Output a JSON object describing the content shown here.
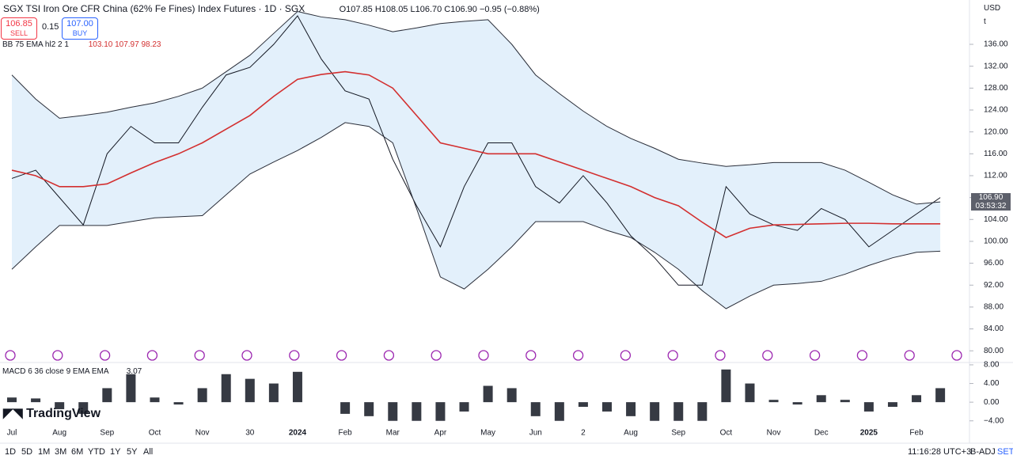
{
  "header": {
    "symbol": "SGX TSI Iron Ore CFR China (62% Fe Fines) Index Futures · 1D · SGX",
    "ohlc": "O107.85 H108.05 L106.70 C106.90 −0.95 (−0.88%)",
    "sell_price": "106.85",
    "sell": "SELL",
    "spread": "0.15",
    "buy_price": "107.00",
    "buy": "BUY",
    "bb_label": "BB 75 EMA hl2 2 1",
    "bb_values": "103.10 107.97 98.23",
    "macd_label": "MACD 6 36 close 9 EMA EMA",
    "macd_value": "3.07",
    "logo": "TradingView",
    "currency": "USD",
    "unit": "t",
    "last_price": "106.90",
    "countdown": "03:53:32"
  },
  "toolbar": {
    "ranges": [
      "1D",
      "5D",
      "1M",
      "3M",
      "6M",
      "YTD",
      "1Y",
      "5Y",
      "All"
    ],
    "clock": "11:16:28 UTC+3",
    "adj": "B-ADJ",
    "session": "SET"
  },
  "chart_data": [
    {
      "type": "line",
      "categories": [
        "Jul",
        null,
        "Aug",
        null,
        "Sep",
        null,
        "Oct",
        null,
        "Nov",
        null,
        "30",
        null,
        "2024",
        null,
        "Feb",
        null,
        "Mar",
        null,
        "Apr",
        null,
        "May",
        null,
        "Jun",
        null,
        "2",
        null,
        "Aug",
        null,
        "Sep",
        null,
        "Oct",
        null,
        "Nov",
        null,
        "Dec",
        null,
        "2025",
        null,
        "Feb",
        null
      ],
      "series": [
        {
          "color": "#131722",
          "values": [
            111.5,
            113,
            108,
            103,
            116,
            121,
            118,
            118,
            124.5,
            130.4,
            131.8,
            136,
            141.2,
            133.3,
            127.5,
            126,
            115,
            106.5,
            99,
            110,
            118,
            118,
            110,
            107,
            112,
            107,
            101,
            97,
            92,
            92,
            110,
            105,
            103,
            102,
            106,
            104,
            99,
            102,
            105,
            108
          ]
        },
        {
          "color": "#d32f2f",
          "values": [
            113,
            112,
            110,
            110,
            110.5,
            112.5,
            114.4,
            116,
            118,
            120.5,
            123,
            126.5,
            129.6,
            130.5,
            131,
            130.4,
            128,
            123,
            118,
            117,
            116,
            116,
            116,
            114.5,
            113,
            111.5,
            110,
            108,
            106.5,
            103.5,
            100.7,
            102.4,
            103,
            103.1,
            103.2,
            103.3,
            103.3,
            103.2,
            103.2,
            103.2
          ]
        },
        {
          "color": "#2a2e39",
          "values": [
            130.4,
            126,
            122.5,
            123,
            123.6,
            124.5,
            125.3,
            126.5,
            128,
            131,
            134,
            138,
            142,
            141,
            140.5,
            139.5,
            138.3,
            139,
            139.8,
            140.2,
            140.5,
            136,
            130.4,
            127,
            123.8,
            121,
            118.8,
            117,
            115,
            114.3,
            113.7,
            114,
            114.4,
            114.4,
            114.4,
            113,
            110.8,
            108.5,
            106.8,
            107.2
          ]
        },
        {
          "color": "#2a2e39",
          "values": [
            94.9,
            99,
            102.9,
            102.9,
            102.9,
            103.6,
            104.3,
            104.5,
            104.7,
            108.5,
            112.3,
            114.5,
            116.6,
            119,
            121.7,
            121,
            118,
            106,
            93.5,
            91.3,
            94.9,
            99,
            103.6,
            103.6,
            103.6,
            102,
            100.7,
            98,
            94.9,
            91,
            87.7,
            90,
            92,
            92.3,
            92.7,
            94,
            95.6,
            97,
            98,
            98.2
          ]
        }
      ],
      "band_color": "#e3f0fb",
      "ylim": [
        78.3,
        144.1
      ],
      "yticks": [
        {
          "value": 80,
          "label": "80.00"
        },
        {
          "value": 84,
          "label": "84.00"
        },
        {
          "value": 88,
          "label": "88.00"
        },
        {
          "value": 92,
          "label": "92.00"
        },
        {
          "value": 96,
          "label": "96.00"
        },
        {
          "value": 100,
          "label": "100.00"
        },
        {
          "value": 104,
          "label": "104.00"
        },
        {
          "value": 108,
          "label": "108.00"
        },
        {
          "value": 112,
          "label": "112.00"
        },
        {
          "value": 116,
          "label": "116.00"
        },
        {
          "value": 120,
          "label": "120.00"
        },
        {
          "value": 124,
          "label": "124.00"
        },
        {
          "value": 128,
          "label": "128.00"
        },
        {
          "value": 132,
          "label": "132.00"
        },
        {
          "value": 136,
          "label": "136.00"
        }
      ]
    },
    {
      "type": "bar",
      "color": "#131722",
      "values": [
        1,
        0.8,
        -1.5,
        -2.5,
        3,
        6,
        1,
        -0.5,
        3,
        6,
        5,
        4,
        6.5,
        0,
        -2.5,
        -3,
        -4,
        -4,
        -4,
        -2,
        3.5,
        3,
        -3,
        -4,
        -1,
        -2,
        -3,
        -4,
        -4,
        -4,
        7,
        4,
        0.5,
        -0.5,
        1.5,
        0.5,
        -2,
        -1,
        1.5,
        3
      ],
      "ylim": [
        -5.4,
        8.5
      ],
      "yticks": [
        {
          "value": 8,
          "label": "8.00"
        },
        {
          "value": 4,
          "label": "4.00"
        },
        {
          "value": 0,
          "label": "0.00"
        },
        {
          "value": -4,
          "label": "−4.00"
        }
      ]
    }
  ]
}
